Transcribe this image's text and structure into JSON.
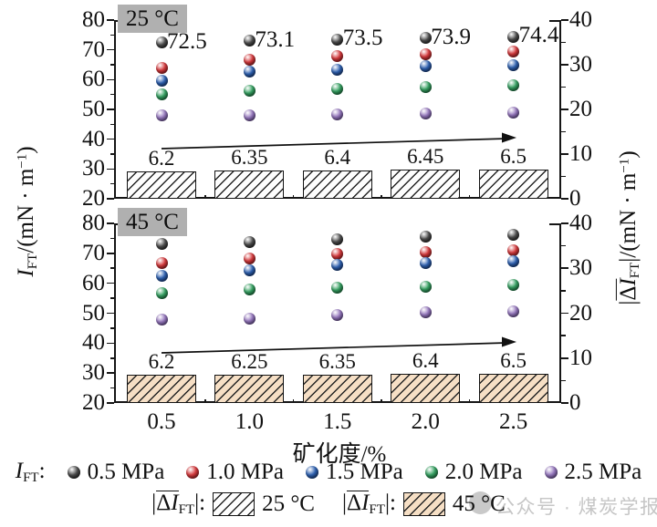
{
  "x_axis": {
    "title": "矿化度/%",
    "tick_labels": [
      "0.5",
      "1.0",
      "1.5",
      "2.0",
      "2.5"
    ],
    "values": [
      0.5,
      1.0,
      1.5,
      2.0,
      2.5
    ]
  },
  "left_axis": {
    "sym": "I",
    "sub": "FT",
    "unit_pre": "/(mN · m",
    "unit_sup": "−1",
    "unit_post": ")",
    "min": 20,
    "max": 80,
    "major_step": 10,
    "minor_step": 5,
    "tick_labels": [
      "80",
      "70",
      "60",
      "50",
      "40",
      "30",
      "20"
    ]
  },
  "right_axis": {
    "open": "|",
    "delta": "Δ",
    "sym": "I",
    "sub": "FT",
    "close": "|",
    "unit_pre": "/(mN · m",
    "unit_sup": "−1",
    "unit_post": ")",
    "min": 0,
    "max": 40,
    "major_step": 10,
    "minor_step": 5,
    "tick_labels": [
      "40",
      "30",
      "20",
      "10",
      "0"
    ]
  },
  "chart_data": [
    {
      "type": "scatter+bar",
      "panel_label": "25 °C",
      "categories": [
        0.5,
        1.0,
        1.5,
        2.0,
        2.5
      ],
      "left_ylim": [
        20,
        80
      ],
      "right_ylim": [
        0,
        40
      ],
      "series": [
        {
          "name": "0.5 MPa",
          "color": "#4f4f4f",
          "dark": "#141414",
          "values": [
            72.5,
            73.1,
            73.5,
            73.9,
            74.4
          ],
          "point_labels": [
            "72.5",
            "73.1",
            "73.5",
            "73.9",
            "74.4"
          ]
        },
        {
          "name": "1.0 MPa",
          "color": "#d63b3e",
          "dark": "#7e1416",
          "values": [
            64.0,
            66.8,
            67.8,
            68.5,
            69.3
          ]
        },
        {
          "name": "1.5 MPa",
          "color": "#2f62b2",
          "dark": "#122f66",
          "values": [
            59.7,
            62.7,
            63.2,
            64.4,
            65.0
          ]
        },
        {
          "name": "2.0 MPa",
          "color": "#37a263",
          "dark": "#145c31",
          "values": [
            54.9,
            56.3,
            56.8,
            57.4,
            58.1
          ]
        },
        {
          "name": "2.5 MPa",
          "color": "#9779bf",
          "dark": "#57407e",
          "values": [
            47.9,
            48.0,
            48.2,
            48.6,
            49.0
          ]
        }
      ],
      "bars": {
        "name": "|ΔIFT| 25 °C",
        "fill": "#fdfdfd",
        "values": [
          6.2,
          6.35,
          6.4,
          6.45,
          6.5
        ],
        "labels": [
          "6.2",
          "6.35",
          "6.4",
          "6.45",
          "6.5"
        ]
      }
    },
    {
      "type": "scatter+bar",
      "panel_label": "45 °C",
      "categories": [
        0.5,
        1.0,
        1.5,
        2.0,
        2.5
      ],
      "left_ylim": [
        20,
        80
      ],
      "right_ylim": [
        0,
        40
      ],
      "series": [
        {
          "name": "0.5 MPa",
          "color": "#4f4f4f",
          "dark": "#141414",
          "values": [
            73.0,
            73.8,
            74.8,
            75.6,
            76.2
          ]
        },
        {
          "name": "1.0 MPa",
          "color": "#d63b3e",
          "dark": "#7e1416",
          "values": [
            66.7,
            68.2,
            69.8,
            70.4,
            70.9
          ]
        },
        {
          "name": "1.5 MPa",
          "color": "#2f62b2",
          "dark": "#122f66",
          "values": [
            62.6,
            64.3,
            66.2,
            66.8,
            67.4
          ]
        },
        {
          "name": "2.0 MPa",
          "color": "#37a263",
          "dark": "#145c31",
          "values": [
            56.8,
            58.0,
            58.5,
            58.9,
            59.3
          ]
        },
        {
          "name": "2.5 MPa",
          "color": "#9779bf",
          "dark": "#57407e",
          "values": [
            48.0,
            48.3,
            49.5,
            50.2,
            50.7
          ]
        }
      ],
      "bars": {
        "name": "|ΔIFT| 45 °C",
        "fill": "#f6dfc5",
        "values": [
          6.2,
          6.25,
          6.35,
          6.4,
          6.5
        ],
        "labels": [
          "6.2",
          "6.25",
          "6.35",
          "6.4",
          "6.5"
        ]
      }
    }
  ],
  "legend": {
    "series_prefix": {
      "sym": "I",
      "sub": "FT",
      "colon": ":"
    },
    "items": [
      {
        "label": "0.5 MPa",
        "color": "#4f4f4f",
        "dark": "#141414"
      },
      {
        "label": "1.0 MPa",
        "color": "#d63b3e",
        "dark": "#7e1416"
      },
      {
        "label": "1.5 MPa",
        "color": "#2f62b2",
        "dark": "#122f66"
      },
      {
        "label": "2.0 MPa",
        "color": "#37a263",
        "dark": "#145c31"
      },
      {
        "label": "2.5 MPa",
        "color": "#9779bf",
        "dark": "#57407e"
      }
    ],
    "bar_prefix": {
      "open": "|",
      "delta": "Δ",
      "sym": "I",
      "sub": "FT",
      "close": "|:"
    },
    "bar_items": [
      {
        "label": "25 °C",
        "fill": "#fdfdfd"
      },
      {
        "label": "45 °C",
        "fill": "#f6dfc5"
      }
    ]
  },
  "watermark": {
    "text": "公众号 · 煤炭学报",
    "circle_color": "#c9c9c9"
  }
}
